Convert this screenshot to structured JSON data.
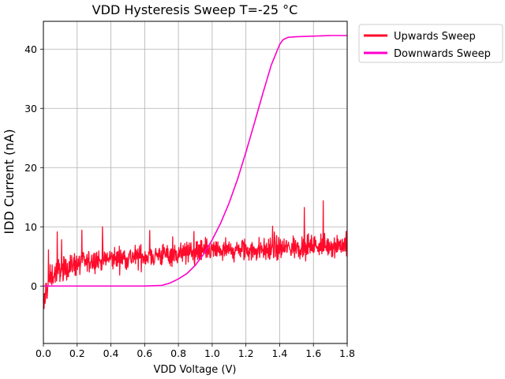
{
  "chart_data": {
    "type": "line",
    "title": "VDD Hysteresis Sweep T=-25 °C",
    "xlabel": "VDD Voltage (V)",
    "ylabel": "IDD Current (nA)",
    "xlim": [
      0.0,
      1.8
    ],
    "ylim": [
      -9.7,
      44.7
    ],
    "x_ticks": [
      "0.0",
      "0.2",
      "0.4",
      "0.6",
      "0.8",
      "1.0",
      "1.2",
      "1.4",
      "1.6",
      "1.8"
    ],
    "y_ticks": [
      "0",
      "10",
      "20",
      "30",
      "40"
    ],
    "grid": true,
    "legend_position": "outside-top-right",
    "series": [
      {
        "name": "Upwards Sweep",
        "color": "#ff0a2a",
        "noisy": true,
        "x": [
          0.0,
          0.02,
          0.05,
          0.1,
          0.2,
          0.4,
          0.6,
          0.8,
          0.9,
          1.0,
          1.2,
          1.4,
          1.6,
          1.8
        ],
        "y": [
          -1.5,
          0.5,
          1.8,
          2.8,
          3.8,
          4.6,
          5.0,
          5.5,
          5.7,
          5.9,
          6.0,
          6.3,
          6.8,
          7.0
        ]
      },
      {
        "name": "Downwards Sweep",
        "color": "#ff00cc",
        "noisy": false,
        "x": [
          0.0,
          0.6,
          0.7,
          0.75,
          0.8,
          0.85,
          0.9,
          0.95,
          1.0,
          1.05,
          1.1,
          1.15,
          1.2,
          1.25,
          1.3,
          1.35,
          1.4,
          1.42,
          1.45,
          1.5,
          1.6,
          1.7,
          1.8
        ],
        "y": [
          0.0,
          0.0,
          0.1,
          0.5,
          1.2,
          2.1,
          3.5,
          5.4,
          7.8,
          10.6,
          14.0,
          18.0,
          22.6,
          27.5,
          32.5,
          37.3,
          40.8,
          41.6,
          42.0,
          42.1,
          42.2,
          42.3,
          42.3
        ]
      }
    ]
  }
}
